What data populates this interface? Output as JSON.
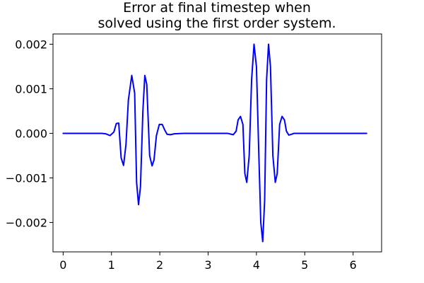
{
  "chart_data": {
    "type": "line",
    "title": "Error at final timestep when\nsolved using the first order system.",
    "xlabel": "",
    "ylabel": "",
    "xlim": [
      -0.21,
      6.59
    ],
    "ylim": [
      -0.00266,
      0.00223
    ],
    "x_ticks": [
      0,
      1,
      2,
      3,
      4,
      5,
      6
    ],
    "x_tick_labels": [
      "0",
      "1",
      "2",
      "3",
      "4",
      "5",
      "6"
    ],
    "y_ticks": [
      -0.002,
      -0.001,
      0.0,
      0.001,
      0.002
    ],
    "y_tick_labels": [
      "−0.002",
      "−0.001",
      "0.000",
      "0.001",
      "0.002"
    ],
    "grid": false,
    "legend": "none",
    "series": [
      {
        "color": "#0000ff",
        "x": [
          0.0,
          0.5,
          0.8,
          0.88,
          0.97,
          1.05,
          1.1,
          1.15,
          1.2,
          1.25,
          1.3,
          1.35,
          1.42,
          1.48,
          1.52,
          1.56,
          1.6,
          1.65,
          1.69,
          1.73,
          1.79,
          1.84,
          1.88,
          1.93,
          1.99,
          2.05,
          2.1,
          2.15,
          2.22,
          2.3,
          2.5,
          3.0,
          3.4,
          3.52,
          3.58,
          3.62,
          3.67,
          3.72,
          3.76,
          3.8,
          3.85,
          3.9,
          3.95,
          4.0,
          4.05,
          4.09,
          4.13,
          4.17,
          4.21,
          4.25,
          4.29,
          4.34,
          4.39,
          4.43,
          4.48,
          4.53,
          4.58,
          4.62,
          4.67,
          4.73,
          4.78,
          4.83,
          4.9,
          5.0,
          5.5,
          6.28
        ],
        "y": [
          0.0,
          0.0,
          0.0,
          -1e-05,
          -5e-05,
          3e-05,
          0.00022,
          0.00023,
          -0.00055,
          -0.00072,
          -0.00025,
          0.00075,
          0.0013,
          0.0009,
          -0.0011,
          -0.0016,
          -0.0012,
          0.0005,
          0.0013,
          0.0011,
          -0.0005,
          -0.00073,
          -0.0006,
          -5e-05,
          0.0002,
          0.0002,
          8e-05,
          -2e-05,
          -3e-05,
          -1e-05,
          0.0,
          0.0,
          0.0,
          -3e-05,
          5e-05,
          0.0003,
          0.00038,
          0.0002,
          -0.0009,
          -0.0011,
          -0.0005,
          0.0012,
          0.002,
          0.0015,
          -0.0005,
          -0.002,
          -0.00243,
          -0.0015,
          0.0012,
          0.002,
          0.0015,
          -0.0005,
          -0.0011,
          -0.0009,
          0.0002,
          0.00038,
          0.0003,
          5e-05,
          -4e-05,
          -2e-05,
          0.0,
          0.0,
          0.0,
          0.0,
          0.0,
          0.0
        ]
      }
    ]
  }
}
